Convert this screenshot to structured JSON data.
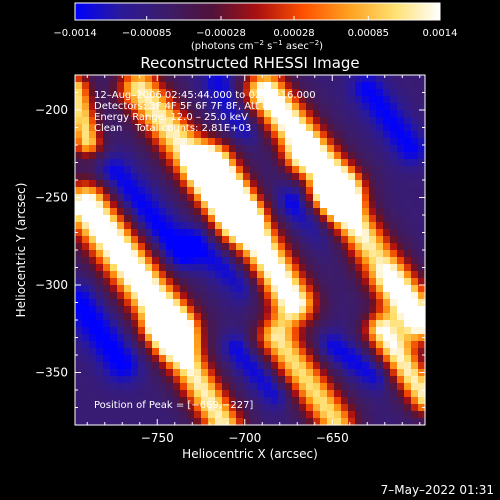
{
  "chart_data": {
    "type": "heatmap",
    "title": "Reconstructed RHESSI Image",
    "xlabel": "Heliocentric X (arcsec)",
    "ylabel": "Heliocentric Y (arcsec)",
    "xlim": [
      -797,
      -597
    ],
    "ylim": [
      -380,
      -180
    ],
    "x_ticks": [
      -750,
      -700,
      -650
    ],
    "x_tick_labels": [
      "−750",
      "−700",
      "−650"
    ],
    "y_ticks": [
      -200,
      -250,
      -300,
      -350
    ],
    "y_tick_labels": [
      "−200",
      "−250",
      "−300",
      "−350"
    ],
    "colorbar": {
      "range": [
        -0.0014,
        0.0014
      ],
      "ticks": [
        -0.0014,
        -0.00085,
        -0.00028,
        0.00028,
        0.00085,
        0.0014
      ],
      "tick_labels": [
        "−0.0014",
        "−0.00085",
        "−0.00028",
        "0.00028",
        "0.00085",
        "0.0014"
      ],
      "units_html": "(photons cm<tspan dy=\"-4\" font-size=\"7\">−2</tspan><tspan dy=\"4\"> s</tspan><tspan dy=\"-4\" font-size=\"7\">−1</tspan><tspan dy=\"4\"> asec</tspan><tspan dy=\"-4\" font-size=\"7\">−2</tspan><tspan dy=\"4\">)</tspan>",
      "colors": [
        "#0000ff",
        "#2a1a9a",
        "#3c1c6a",
        "#50123a",
        "#aa1010",
        "#ff5000",
        "#ffa020",
        "#ffe070",
        "#ffffff"
      ]
    },
    "annotations": [
      "12–Aug–2006 02:45:44.000 to 02:47:16.000",
      "Detectors: 3F 4F 5F 6F 7F 8F, Att 0",
      "Energy Range: 12.0 – 25.0 keV",
      "Clean    Total counts: 2.81E+03"
    ],
    "peak_label": "Position of Peak = [−669,−227]",
    "peak_position": [
      -669,
      -227
    ],
    "ridges": [
      {
        "x0": -790,
        "y0": -255,
        "x1": -740,
        "y1": -325,
        "width": 10,
        "amp": 0.95
      },
      {
        "x0": -760,
        "y0": -188,
        "x1": -705,
        "y1": -262,
        "width": 9,
        "amp": 0.75
      },
      {
        "x0": -718,
        "y0": -232,
        "x1": -672,
        "y1": -310,
        "width": 9,
        "amp": 0.9
      },
      {
        "x0": -688,
        "y0": -190,
        "x1": -645,
        "y1": -245,
        "width": 9,
        "amp": 0.9
      },
      {
        "x0": -650,
        "y0": -250,
        "x1": -600,
        "y1": -320,
        "width": 9,
        "amp": 0.95
      },
      {
        "x0": -745,
        "y0": -325,
        "x1": -712,
        "y1": -380,
        "width": 8,
        "amp": 0.75
      },
      {
        "x0": -682,
        "y0": -330,
        "x1": -648,
        "y1": -378,
        "width": 8,
        "amp": 0.7
      },
      {
        "x0": -622,
        "y0": -326,
        "x1": -597,
        "y1": -364,
        "width": 7,
        "amp": 0.75
      },
      {
        "x0": -797,
        "y0": -188,
        "x1": -790,
        "y1": -218,
        "width": 6,
        "amp": 0.7
      }
    ],
    "troughs": [
      {
        "x0": -795,
        "y0": -310,
        "x1": -770,
        "y1": -345,
        "width": 8,
        "amp": 0.6
      },
      {
        "x0": -775,
        "y0": -238,
        "x1": -738,
        "y1": -282,
        "width": 8,
        "amp": 0.65
      },
      {
        "x0": -715,
        "y0": -184,
        "x1": -700,
        "y1": -210,
        "width": 7,
        "amp": 0.5
      },
      {
        "x0": -670,
        "y0": -253,
        "x1": -628,
        "y1": -285,
        "width": 8,
        "amp": 0.7
      },
      {
        "x0": -727,
        "y0": -275,
        "x1": -700,
        "y1": -300,
        "width": 7,
        "amp": 0.5
      },
      {
        "x0": -630,
        "y0": -188,
        "x1": -605,
        "y1": -222,
        "width": 7,
        "amp": 0.55
      },
      {
        "x0": -705,
        "y0": -336,
        "x1": -682,
        "y1": -362,
        "width": 6,
        "amp": 0.5
      },
      {
        "x0": -650,
        "y0": -335,
        "x1": -625,
        "y1": -352,
        "width": 6,
        "amp": 0.5
      }
    ],
    "baseline": 0.2,
    "grid": false
  },
  "timestamp": "7–May–2022 01:31"
}
